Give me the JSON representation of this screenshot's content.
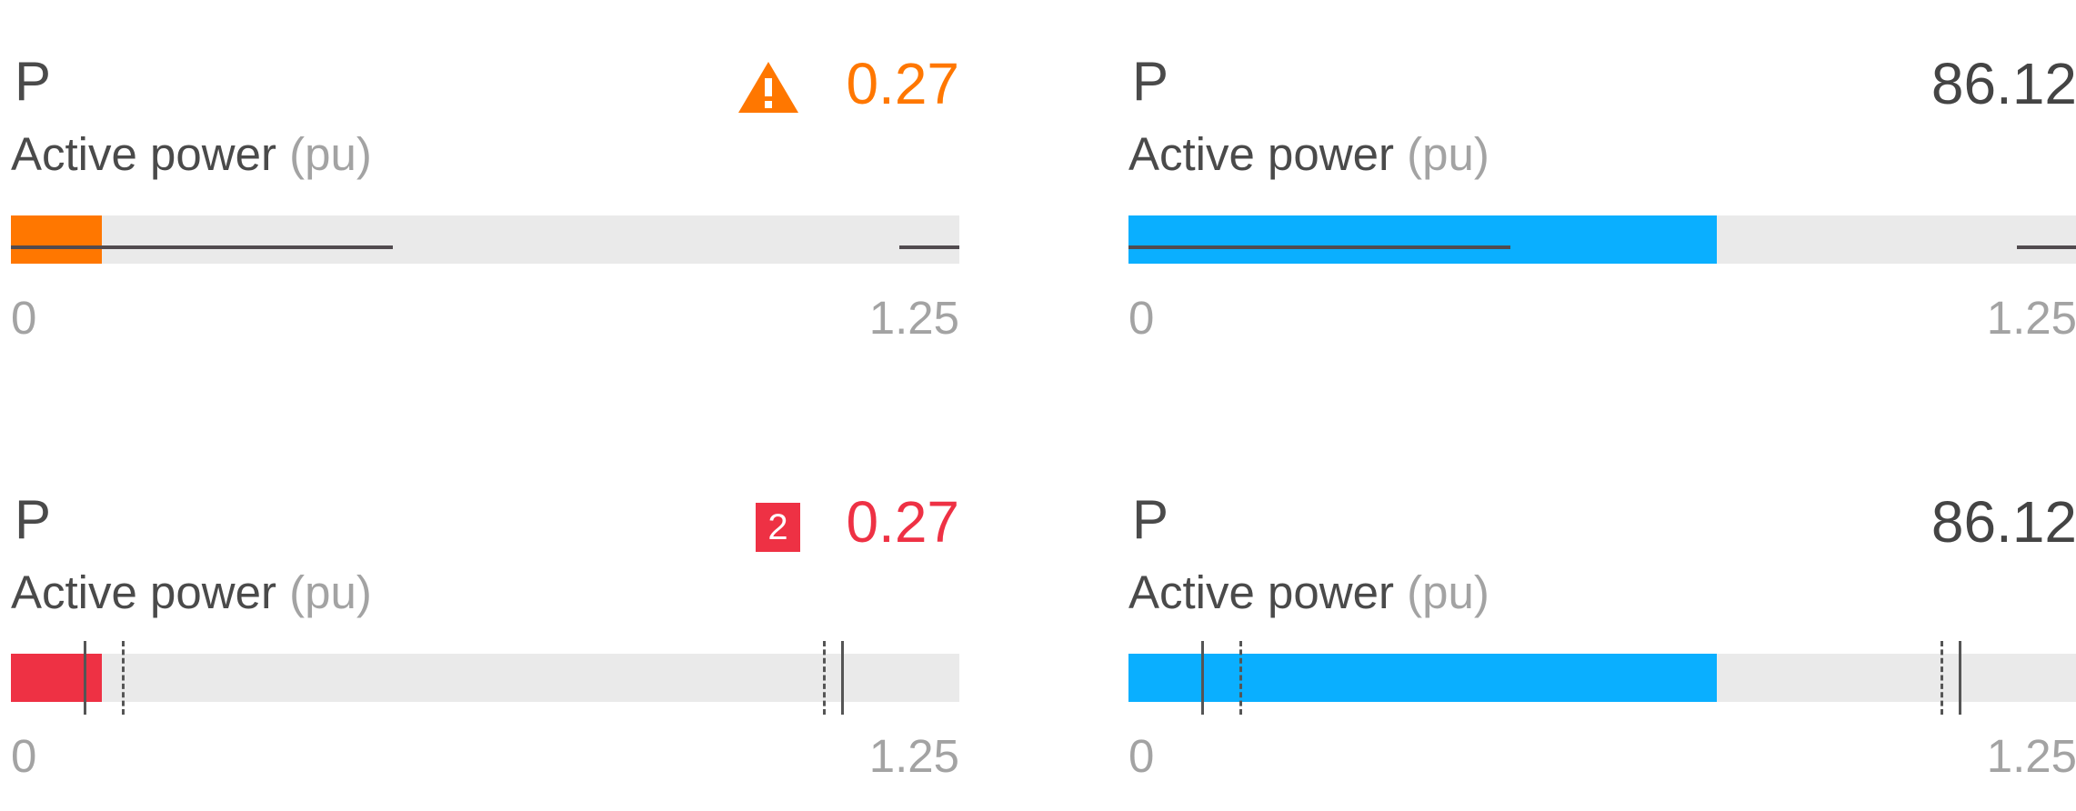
{
  "colors": {
    "warning": "#ff7700",
    "alarm": "#ee3144",
    "normal": "#0aafff",
    "track": "#eaeaea",
    "text": "#4a4a4a",
    "muted": "#a3a3a3"
  },
  "cards": [
    {
      "symbol": "P",
      "value": "0.27",
      "label": "Active power",
      "unit": "(pu)",
      "min": "0",
      "max": "1.25",
      "status": "warning",
      "status_icon": "warning-triangle-icon",
      "fill_fraction": 0.096
    },
    {
      "symbol": "P",
      "value": "86.12",
      "label": "Active power",
      "unit": "(pu)",
      "min": "0",
      "max": "1.25",
      "status": "normal",
      "fill_fraction": 0.62
    },
    {
      "symbol": "P",
      "value": "0.27",
      "label": "Active power",
      "unit": "(pu)",
      "min": "0",
      "max": "1.25",
      "status": "alarm",
      "badge": "2",
      "fill_fraction": 0.096
    },
    {
      "symbol": "P",
      "value": "86.12",
      "label": "Active power",
      "unit": "(pu)",
      "min": "0",
      "max": "1.25",
      "status": "normal",
      "fill_fraction": 0.62
    }
  ]
}
